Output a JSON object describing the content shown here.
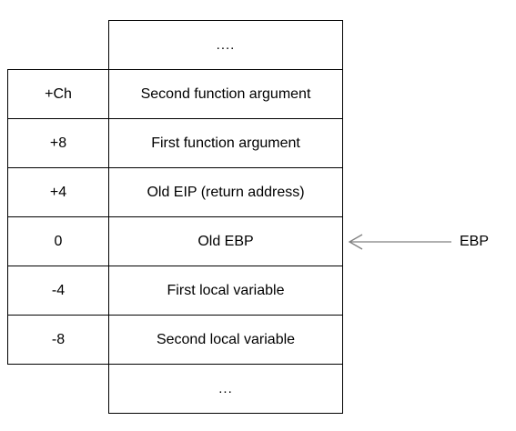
{
  "stack": {
    "top_ellipsis": "....",
    "bottom_ellipsis": "...",
    "rows": [
      {
        "offset": "+Ch",
        "label": "Second function argument"
      },
      {
        "offset": "+8",
        "label": "First function argument"
      },
      {
        "offset": "+4",
        "label": "Old EIP (return address)"
      },
      {
        "offset": "0",
        "label": "Old EBP"
      },
      {
        "offset": "-4",
        "label": "First local variable"
      },
      {
        "offset": "-8",
        "label": "Second local variable"
      }
    ]
  },
  "pointer": {
    "label": "EBP",
    "line_color": "#808080"
  }
}
